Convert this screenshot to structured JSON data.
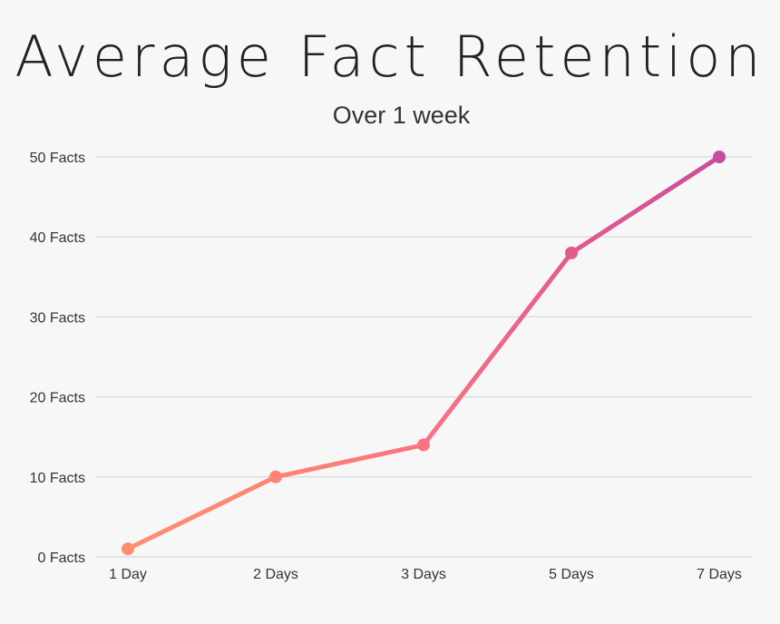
{
  "chart_data": {
    "type": "line",
    "title": "Average Fact Retention",
    "subtitle": "Over 1 week",
    "xlabel": "",
    "ylabel": "",
    "categories": [
      "1 Day",
      "2 Days",
      "3 Days",
      "5 Days",
      "7 Days"
    ],
    "values": [
      1,
      10,
      14,
      38,
      50
    ],
    "yticks": [
      0,
      10,
      20,
      30,
      40,
      50
    ],
    "ytick_labels": [
      "0 Facts",
      "10 Facts",
      "20 Facts",
      "30 Facts",
      "40 Facts",
      "50 Facts"
    ],
    "ylim": [
      0,
      50
    ],
    "grid": true,
    "point_colors": [
      "#ff8f6e",
      "#fd8472",
      "#f87480",
      "#e55a8c",
      "#c94c9e"
    ]
  }
}
